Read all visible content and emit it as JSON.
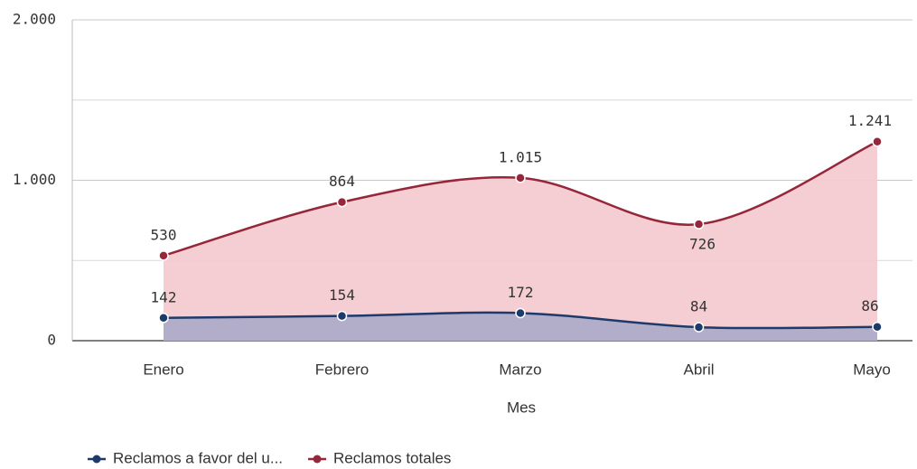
{
  "chart_data": {
    "type": "area",
    "x_label": "Mes",
    "categories": [
      "Enero",
      "Febrero",
      "Marzo",
      "Abril",
      "Mayo"
    ],
    "series": [
      {
        "name": "Reclamos a favor del u...",
        "color": "#1e3a6b",
        "fill": "#aeacc9",
        "values": [
          142,
          154,
          172,
          84,
          86
        ]
      },
      {
        "name": "Reclamos totales",
        "color": "#96263a",
        "fill": "#f3cbd0",
        "values": [
          530,
          864,
          1015,
          726,
          1241
        ],
        "value_labels": [
          "530",
          "864",
          "1.015",
          "726",
          "1.241"
        ]
      }
    ],
    "ylim": [
      0,
      2000
    ],
    "yticks": [
      0,
      {
        "value": 1000,
        "label": "1.000"
      },
      {
        "value": 2000,
        "label": "2.000"
      }
    ],
    "ygrid_minor": [
      500,
      1500
    ],
    "grid": true,
    "legend": "bottom-left"
  }
}
